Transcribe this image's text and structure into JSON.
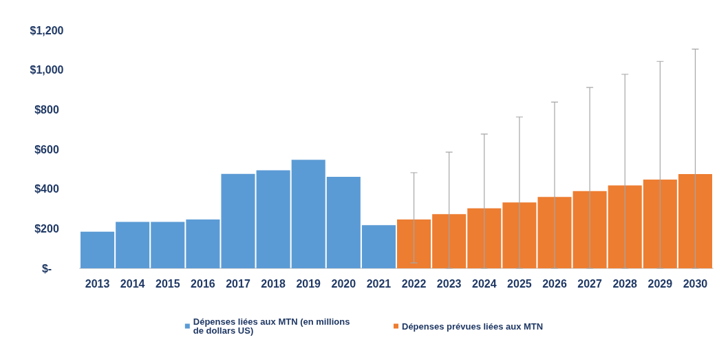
{
  "chart_data": {
    "type": "bar",
    "categories": [
      "2013",
      "2014",
      "2015",
      "2016",
      "2017",
      "2018",
      "2019",
      "2020",
      "2021",
      "2022",
      "2023",
      "2024",
      "2025",
      "2026",
      "2027",
      "2028",
      "2029",
      "2030"
    ],
    "series": [
      {
        "name": "Dépenses liées aux MTN (en millions de dollars US)",
        "color": "#5b9bd5",
        "values": [
          185,
          234,
          234,
          246,
          476,
          494,
          547,
          461,
          218,
          null,
          null,
          null,
          null,
          null,
          null,
          null,
          null,
          null
        ]
      },
      {
        "name": "Dépenses prévues liées aux MTN",
        "color": "#ed7d31",
        "values": [
          null,
          null,
          null,
          null,
          null,
          null,
          null,
          null,
          null,
          246,
          273,
          303,
          332,
          360,
          389,
          418,
          447,
          475
        ],
        "errors": [
          null,
          null,
          null,
          null,
          null,
          null,
          null,
          null,
          null,
          [
            27,
            482
          ],
          [
            0,
            586
          ],
          [
            0,
            677
          ],
          [
            0,
            763
          ],
          [
            0,
            838
          ],
          [
            0,
            912
          ],
          [
            0,
            978
          ],
          [
            0,
            1043
          ],
          [
            0,
            1105
          ]
        ]
      }
    ],
    "ylim": [
      0,
      1200
    ],
    "yticks": [
      {
        "value": 0,
        "label": "$-"
      },
      {
        "value": 200,
        "label": "$200"
      },
      {
        "value": 400,
        "label": "$400"
      },
      {
        "value": 600,
        "label": "$600"
      },
      {
        "value": 800,
        "label": "$800"
      },
      {
        "value": 1000,
        "label": "$1,000"
      },
      {
        "value": 1200,
        "label": "$1,200"
      }
    ],
    "grid": false,
    "legend": "bottom"
  }
}
